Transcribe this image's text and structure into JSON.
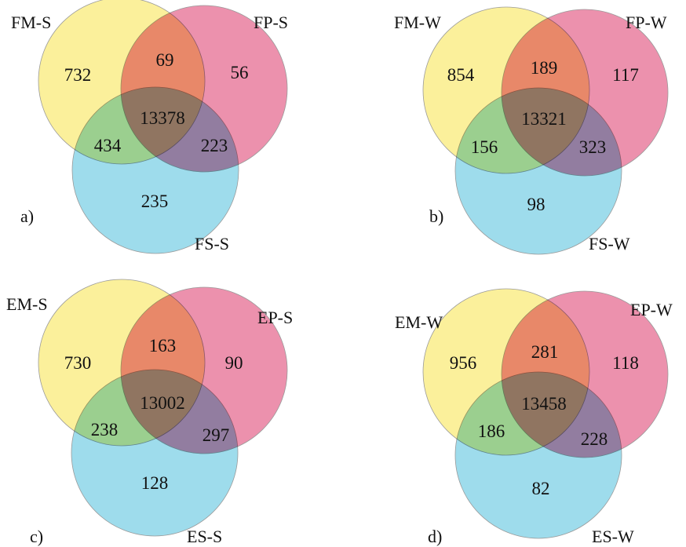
{
  "colors": {
    "set_a": "#fbf09b",
    "set_b": "#ec91ad",
    "set_c": "#9edcec"
  },
  "panels": [
    {
      "letter": "a)",
      "sets": [
        "FM-S",
        "FP-S",
        "FS-S"
      ],
      "counts": {
        "only_a": "732",
        "ab": "69",
        "only_b": "56",
        "abc": "13378",
        "ac": "434",
        "bc": "223",
        "only_c": "235"
      }
    },
    {
      "letter": "b)",
      "sets": [
        "FM-W",
        "FP-W",
        "FS-W"
      ],
      "counts": {
        "only_a": "854",
        "ab": "189",
        "only_b": "117",
        "abc": "13321",
        "ac": "156",
        "bc": "323",
        "only_c": "98"
      }
    },
    {
      "letter": "c)",
      "sets": [
        "EM-S",
        "EP-S",
        "ES-S"
      ],
      "counts": {
        "only_a": "730",
        "ab": "163",
        "only_b": "90",
        "abc": "13002",
        "ac": "238",
        "bc": "297",
        "only_c": "128"
      }
    },
    {
      "letter": "d)",
      "sets": [
        "EM-W",
        "EP-W",
        "ES-W"
      ],
      "counts": {
        "only_a": "956",
        "ab": "281",
        "only_b": "118",
        "abc": "13458",
        "ac": "186",
        "bc": "228",
        "only_c": "82"
      }
    }
  ]
}
